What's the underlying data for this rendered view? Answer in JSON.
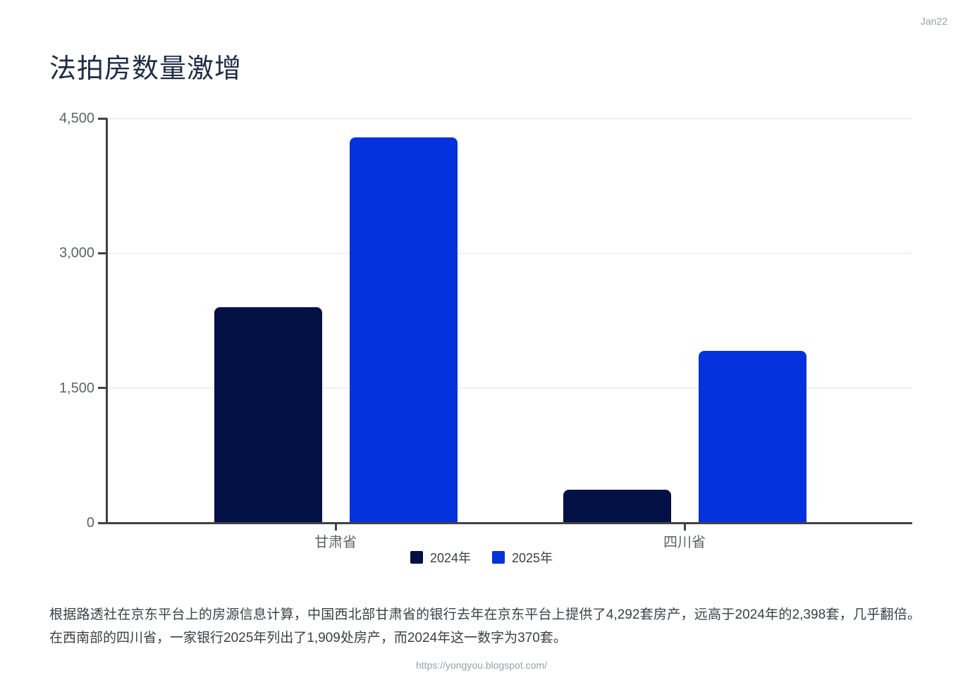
{
  "date_label": "Jan22",
  "title": "法拍房数量激增",
  "chart_data": {
    "type": "bar",
    "title": "法拍房数量激增",
    "categories": [
      "甘肃省",
      "四川省"
    ],
    "series": [
      {
        "name": "2024年",
        "color": "#041145",
        "values": [
          2398,
          370
        ]
      },
      {
        "name": "2025年",
        "color": "#0432dc",
        "values": [
          4292,
          1909
        ]
      }
    ],
    "xlabel": "",
    "ylabel": "",
    "ylim": [
      0,
      4500
    ],
    "yticks": [
      0,
      1500,
      3000,
      4500
    ],
    "ytick_labels": [
      "0",
      "1,500",
      "3,000",
      "4,500"
    ],
    "grid": true,
    "legend_position": "bottom"
  },
  "description": {
    "text": "根据路透社在京东平台上的房源信息计算，中国西北部甘肃省的银行去年在京东平台上提供了4,292套房产，远高于2024年的2,398套，几乎翻倍。在西南部的四川省，一家银行2025年列出了1,909处房产，而2024年这一数字为370套。"
  },
  "footer_url": "https://yongyou.blogspot.com/",
  "colors": {
    "series_2024": "#041145",
    "series_2025": "#0432dc",
    "title": "#1e2c47",
    "axis": "#424242",
    "gridline": "#e3e3e3",
    "tick_text": "#5f6368",
    "muted_text": "#9aa0a6"
  }
}
